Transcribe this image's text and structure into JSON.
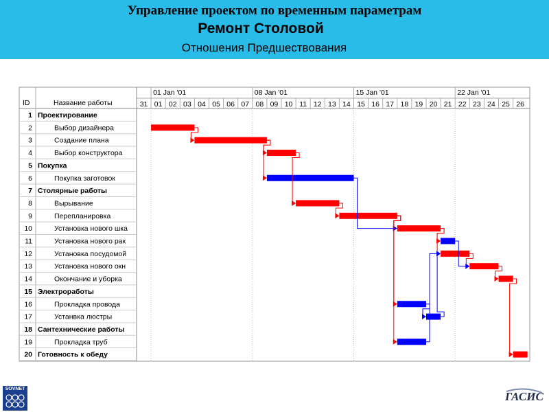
{
  "header": {
    "title1": "Управление проектом по временным параметрам",
    "title2": "Ремонт Столовой",
    "title3": "Отношения Предшествования"
  },
  "table": {
    "id_header": "ID",
    "name_header": "Название работы"
  },
  "timescale": {
    "weeks": [
      "01 Jan '01",
      "08 Jan '01",
      "15 Jan '01",
      "22 Jan '01"
    ],
    "days": [
      "31",
      "01",
      "02",
      "03",
      "04",
      "05",
      "06",
      "07",
      "08",
      "09",
      "10",
      "11",
      "12",
      "13",
      "14",
      "15",
      "16",
      "17",
      "18",
      "19",
      "20",
      "21",
      "22",
      "23",
      "24",
      "25",
      "26"
    ]
  },
  "colors": {
    "critical": "#ff0000",
    "noncritical": "#0000ff",
    "header_bg": "#29bce9",
    "logo_left": "#1b3f8f"
  },
  "chart_data": {
    "type": "gantt",
    "tasks": [
      {
        "id": 1,
        "name": "Проектирование",
        "summary": true
      },
      {
        "id": 2,
        "name": "Выбор дизайнера",
        "summary": false,
        "start": "01",
        "end": "03",
        "critical": true
      },
      {
        "id": 3,
        "name": "Создание плана",
        "summary": false,
        "start": "04",
        "end": "08",
        "critical": true
      },
      {
        "id": 4,
        "name": "Выбор конструктора",
        "summary": false,
        "start": "09",
        "end": "10",
        "critical": true
      },
      {
        "id": 5,
        "name": "Покупка",
        "summary": true
      },
      {
        "id": 6,
        "name": "Покупка заготовок",
        "summary": false,
        "start": "09",
        "end": "14",
        "critical": false
      },
      {
        "id": 7,
        "name": "Столярные работы",
        "summary": true
      },
      {
        "id": 8,
        "name": "Вырывание",
        "summary": false,
        "start": "11",
        "end": "13",
        "critical": true
      },
      {
        "id": 9,
        "name": "Перепланировка",
        "summary": false,
        "start": "14",
        "end": "17",
        "critical": true
      },
      {
        "id": 10,
        "name": "Установка нового шка",
        "summary": false,
        "start": "18",
        "end": "20",
        "critical": true
      },
      {
        "id": 11,
        "name": "Установка нового рак",
        "summary": false,
        "start": "21",
        "end": "21",
        "critical": false
      },
      {
        "id": 12,
        "name": "Установка посудомой",
        "summary": false,
        "start": "21",
        "end": "22",
        "critical": true
      },
      {
        "id": 13,
        "name": "Установка нового окн",
        "summary": false,
        "start": "23",
        "end": "24",
        "critical": true
      },
      {
        "id": 14,
        "name": "Окончание и уборка",
        "summary": false,
        "start": "25",
        "end": "25",
        "critical": true
      },
      {
        "id": 15,
        "name": "Электроработы",
        "summary": true
      },
      {
        "id": 16,
        "name": "Прокладка провода",
        "summary": false,
        "start": "18",
        "end": "19",
        "critical": false
      },
      {
        "id": 17,
        "name": "Устанвка люстры",
        "summary": false,
        "start": "20",
        "end": "20",
        "critical": false
      },
      {
        "id": 18,
        "name": "Сантехнические работы",
        "summary": true
      },
      {
        "id": 19,
        "name": "Прокладка труб",
        "summary": false,
        "start": "18",
        "end": "19",
        "critical": false
      },
      {
        "id": 20,
        "name": "Готовность к обеду",
        "summary": true,
        "start": "26",
        "end": "26",
        "critical": true
      }
    ],
    "links": [
      {
        "from": 2,
        "to": 3
      },
      {
        "from": 3,
        "to": 4
      },
      {
        "from": 3,
        "to": 6
      },
      {
        "from": 4,
        "to": 8
      },
      {
        "from": 8,
        "to": 9
      },
      {
        "from": 9,
        "to": 10
      },
      {
        "from": 6,
        "to": 10
      },
      {
        "from": 10,
        "to": 11
      },
      {
        "from": 10,
        "to": 12
      },
      {
        "from": 12,
        "to": 13
      },
      {
        "from": 11,
        "to": 13
      },
      {
        "from": 13,
        "to": 14
      },
      {
        "from": 9,
        "to": 16
      },
      {
        "from": 16,
        "to": 17
      },
      {
        "from": 9,
        "to": 19
      },
      {
        "from": 17,
        "to": 12
      },
      {
        "from": 19,
        "to": 12
      },
      {
        "from": 14,
        "to": 20
      }
    ]
  }
}
